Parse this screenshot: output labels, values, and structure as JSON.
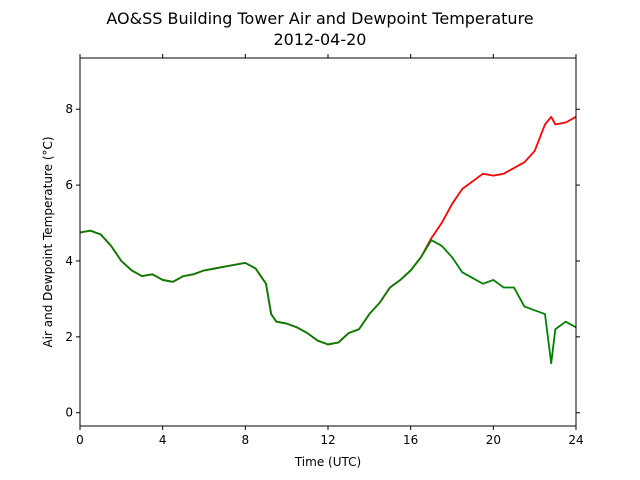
{
  "chart_data": {
    "type": "line",
    "title": "AO&SS Building Tower Air and Dewpoint Temperature",
    "subtitle": "2012-04-20",
    "xlabel": "Time (UTC)",
    "ylabel": "Air and Dewpoint Temperature (°C)",
    "xlim": [
      0,
      24
    ],
    "ylim": [
      -0.35,
      9.35
    ],
    "xticks": [
      0,
      4,
      8,
      12,
      16,
      20,
      24
    ],
    "yticks": [
      0,
      2,
      4,
      6,
      8
    ],
    "grid": false,
    "legend": "none",
    "series": [
      {
        "color": "#ff0000",
        "x": [
          0,
          0.5,
          1,
          1.5,
          2,
          2.5,
          3,
          3.5,
          4,
          4.5,
          5,
          5.5,
          6,
          6.5,
          7,
          7.5,
          8,
          8.5,
          9,
          9.25,
          9.5,
          10,
          10.5,
          11,
          11.5,
          12,
          12.5,
          13,
          13.5,
          14,
          14.5,
          15,
          15.5,
          16,
          16.5,
          17,
          17.5,
          18,
          18.5,
          19,
          19.5,
          20,
          20.5,
          21,
          21.5,
          22,
          22.5,
          22.8,
          23,
          23.5,
          24
        ],
        "y": [
          4.75,
          4.8,
          4.7,
          4.4,
          4.0,
          3.75,
          3.6,
          3.65,
          3.5,
          3.45,
          3.6,
          3.65,
          3.75,
          3.8,
          3.85,
          3.9,
          3.95,
          3.8,
          3.4,
          2.6,
          2.4,
          2.35,
          2.25,
          2.1,
          1.9,
          1.8,
          1.85,
          2.1,
          2.2,
          2.6,
          2.9,
          3.3,
          3.5,
          3.75,
          4.1,
          4.6,
          5.0,
          5.5,
          5.9,
          6.1,
          6.3,
          6.25,
          6.3,
          6.45,
          6.6,
          6.9,
          7.6,
          7.8,
          7.6,
          7.65,
          7.8
        ]
      },
      {
        "color": "#008000",
        "x": [
          0,
          0.5,
          1,
          1.5,
          2,
          2.5,
          3,
          3.5,
          4,
          4.5,
          5,
          5.5,
          6,
          6.5,
          7,
          7.5,
          8,
          8.5,
          9,
          9.25,
          9.5,
          10,
          10.5,
          11,
          11.5,
          12,
          12.5,
          13,
          13.5,
          14,
          14.5,
          15,
          15.5,
          16,
          16.5,
          17,
          17.5,
          18,
          18.5,
          19,
          19.5,
          20,
          20.5,
          21,
          21.5,
          22,
          22.5,
          22.8,
          23,
          23.5,
          24
        ],
        "y": [
          4.75,
          4.8,
          4.7,
          4.4,
          4.0,
          3.75,
          3.6,
          3.65,
          3.5,
          3.45,
          3.6,
          3.65,
          3.75,
          3.8,
          3.85,
          3.9,
          3.95,
          3.8,
          3.4,
          2.6,
          2.4,
          2.35,
          2.25,
          2.1,
          1.9,
          1.8,
          1.85,
          2.1,
          2.2,
          2.6,
          2.9,
          3.3,
          3.5,
          3.75,
          4.1,
          4.55,
          4.4,
          4.1,
          3.7,
          3.55,
          3.4,
          3.5,
          3.3,
          3.3,
          2.8,
          2.7,
          2.6,
          1.3,
          2.2,
          2.4,
          2.25
        ]
      }
    ]
  }
}
